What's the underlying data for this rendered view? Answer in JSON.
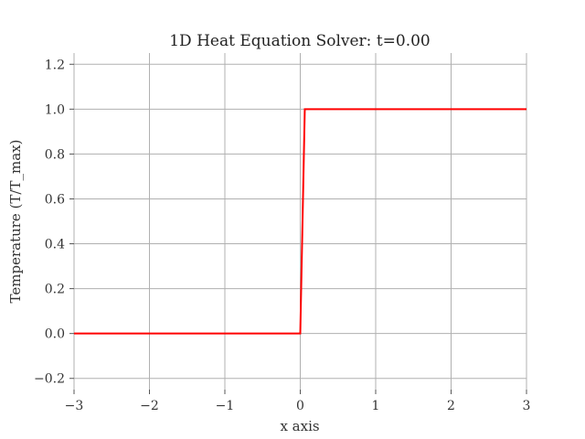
{
  "chart_data": {
    "type": "line",
    "title": "1D Heat Equation Solver: t=0.00",
    "xlabel": "x axis",
    "ylabel": "Temperature (T/T_max)",
    "xlim": [
      -3,
      3
    ],
    "ylim": [
      -0.25,
      1.25
    ],
    "x_ticks": [
      -3,
      -2,
      -1,
      0,
      1,
      2,
      3
    ],
    "x_tick_labels": [
      "−3",
      "−2",
      "−1",
      "0",
      "1",
      "2",
      "3"
    ],
    "y_ticks": [
      -0.2,
      0.0,
      0.2,
      0.4,
      0.6,
      0.8,
      1.0,
      1.2
    ],
    "y_tick_labels": [
      "−0.2",
      "0.0",
      "0.2",
      "0.4",
      "0.6",
      "0.8",
      "1.0",
      "1.2"
    ],
    "grid": true,
    "series": [
      {
        "color": "#ff0000",
        "x": [
          -3,
          0,
          0.06,
          3
        ],
        "y": [
          0,
          0,
          1,
          1
        ]
      }
    ]
  }
}
